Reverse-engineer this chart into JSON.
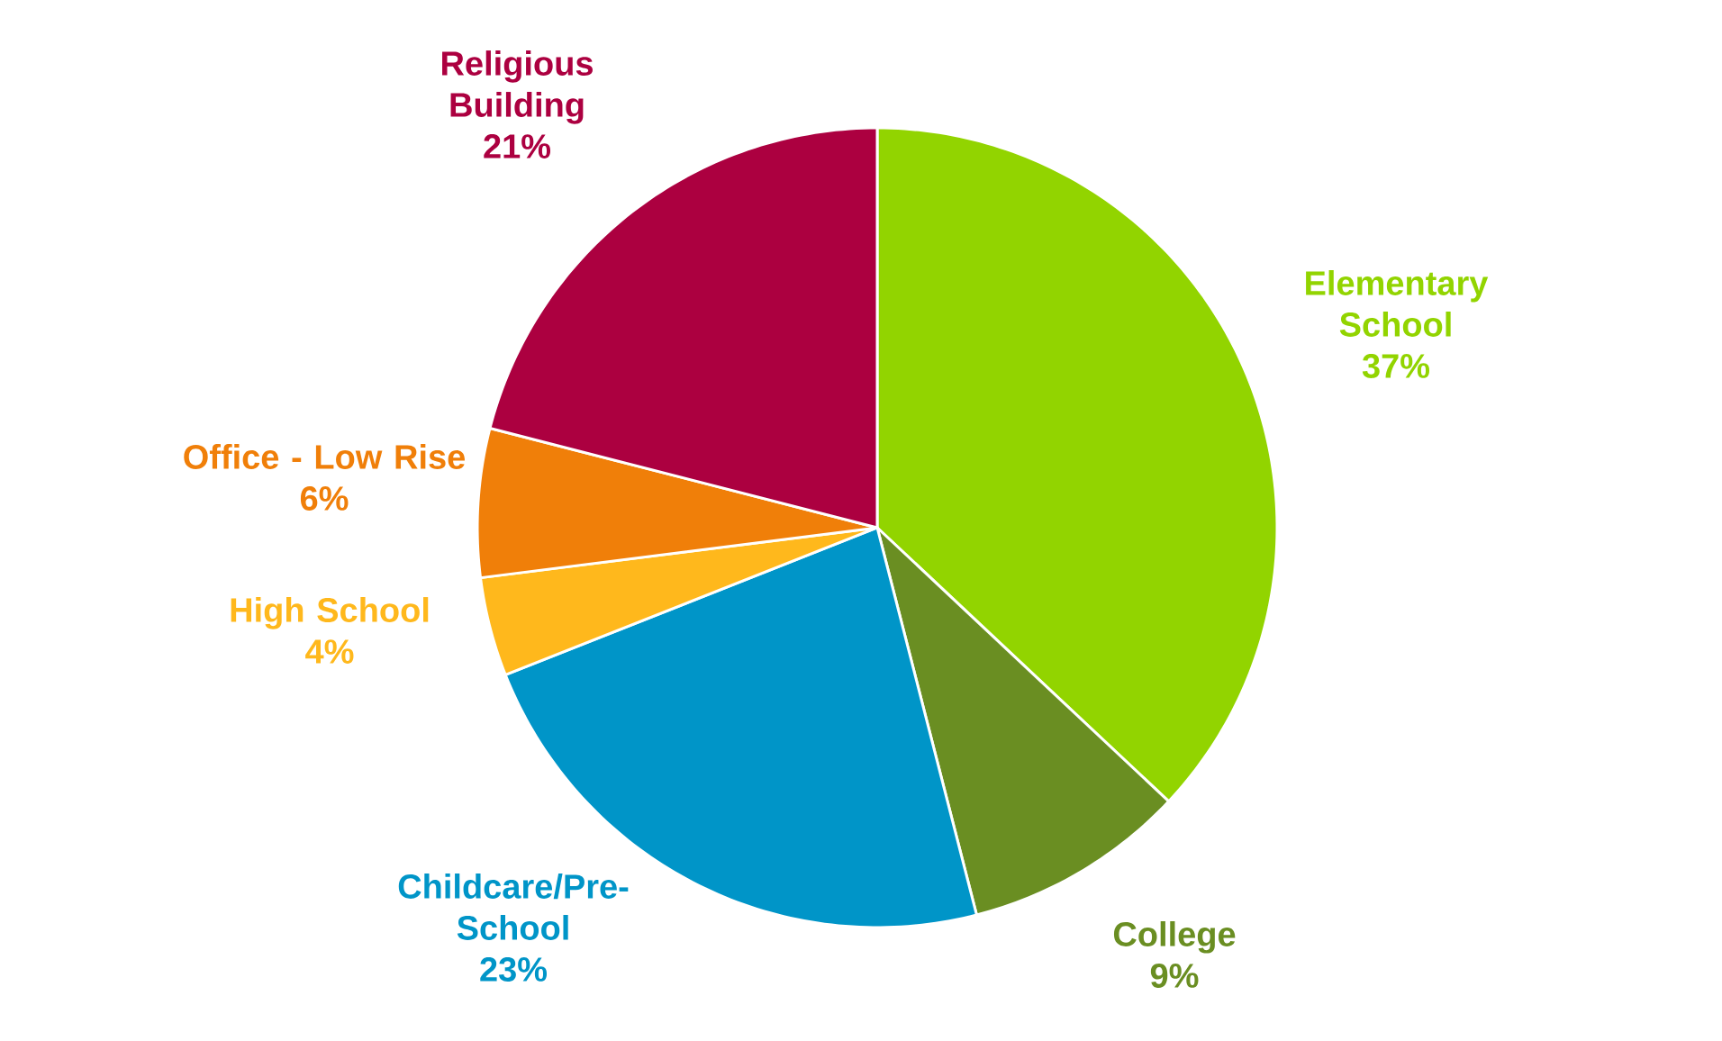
{
  "chart_data": {
    "type": "pie",
    "categories": [
      "Elementary School",
      "College",
      "Childcare/Pre-School",
      "High School",
      "Office - Low Rise",
      "Religious Building"
    ],
    "values": [
      37,
      9,
      23,
      4,
      6,
      21
    ],
    "value_labels": [
      "37%",
      "9%",
      "23%",
      "4%",
      "6%",
      "21%"
    ],
    "colors": [
      "#92d400",
      "#6a8e22",
      "#0095c8",
      "#ffb81c",
      "#f07f09",
      "#ac0040"
    ]
  }
}
